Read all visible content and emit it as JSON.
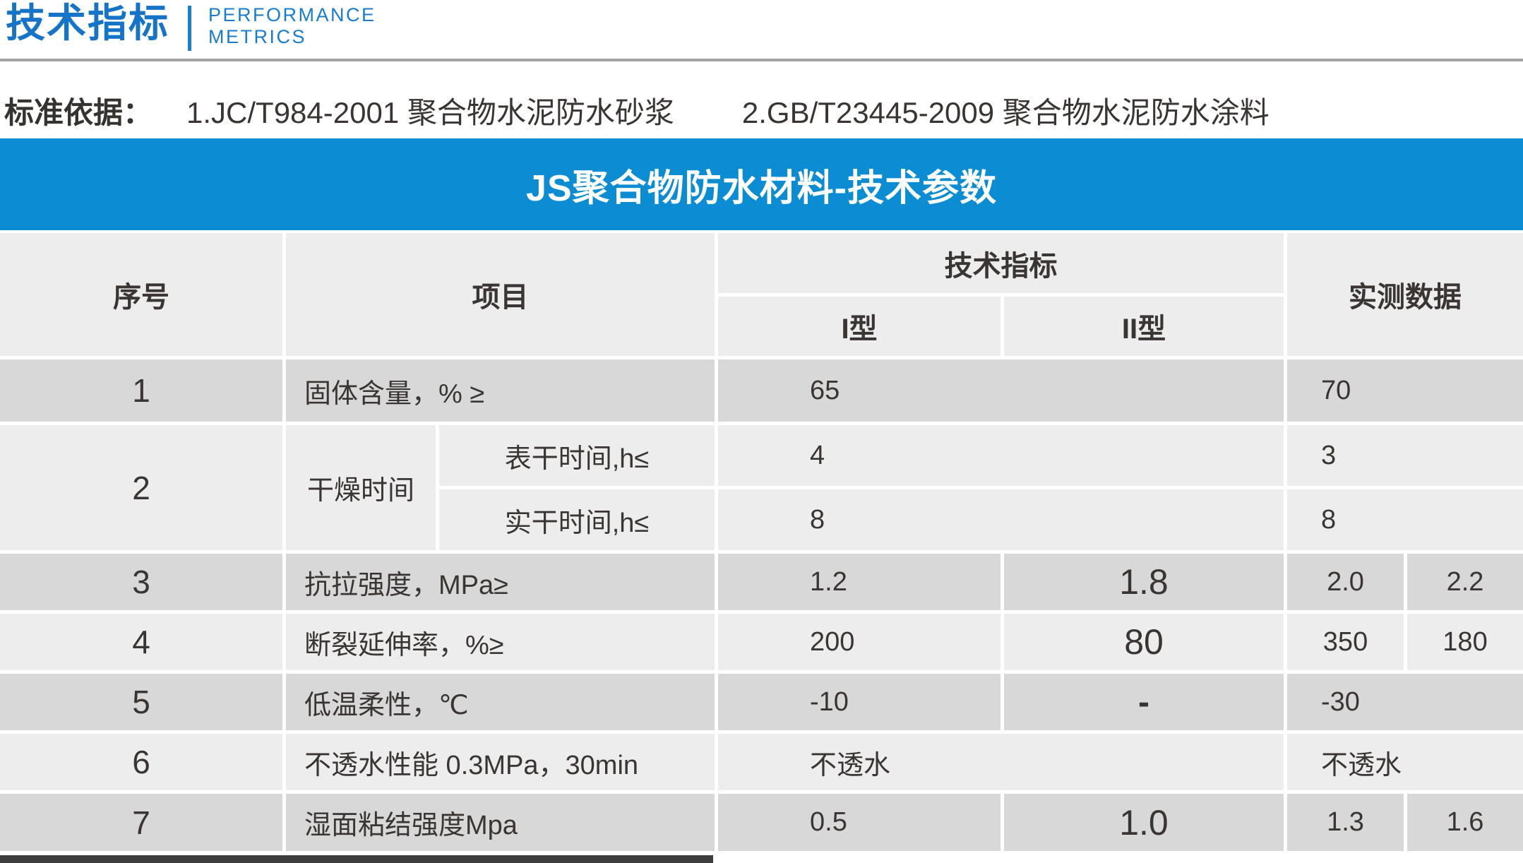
{
  "page_header": {
    "title_cn": "技术指标",
    "title_en_line1": "PERFORMANCE",
    "title_en_line2": "METRICS"
  },
  "standards": {
    "label": "标准依据：",
    "item1": "1.JC/T984-2001 聚合物水泥防水砂浆",
    "item2": "2.GB/T23445-2009 聚合物水泥防水涂料"
  },
  "banner": {
    "title": "JS聚合物防水材料-技术参数"
  },
  "table": {
    "headers": {
      "no": "序号",
      "item": "项目",
      "tech_index": "技术指标",
      "type1": "I型",
      "type2": "II型",
      "measured": "实测数据"
    },
    "rows": {
      "r1": {
        "no": "1",
        "item": "固体含量，% ≥",
        "spec": "65",
        "measured": "70"
      },
      "r2": {
        "no": "2",
        "item": "干燥时间",
        "sub1": {
          "name": "表干时间,h≤",
          "spec": "4",
          "measured": "3"
        },
        "sub2": {
          "name": "实干时间,h≤",
          "spec": "8",
          "measured": "8"
        }
      },
      "r3": {
        "no": "3",
        "item": "抗拉强度，MPa≥",
        "type1": "1.2",
        "type2": "1.8",
        "measured1": "2.0",
        "measured2": "2.2"
      },
      "r4": {
        "no": "4",
        "item": "断裂延伸率，%≥",
        "type1": "200",
        "type2": "80",
        "measured1": "350",
        "measured2": "180"
      },
      "r5": {
        "no": "5",
        "item": "低温柔性，℃",
        "type1": "-10",
        "type2": "-",
        "measured": "-30"
      },
      "r6": {
        "no": "6",
        "item": "不透水性能 0.3MPa，30min",
        "spec": "不透水",
        "measured": "不透水"
      },
      "r7": {
        "no": "7",
        "item": "湿面粘结强度Mpa",
        "type1": "0.5",
        "type2": "1.0",
        "measured1": "1.3",
        "measured2": "1.6"
      }
    }
  },
  "colors": {
    "title_blue": "#1573c8",
    "banner_blue": "#0c8cd2",
    "row_dark": "#d8d8d8",
    "row_light": "#ededed",
    "text_dark": "#3a3533"
  }
}
